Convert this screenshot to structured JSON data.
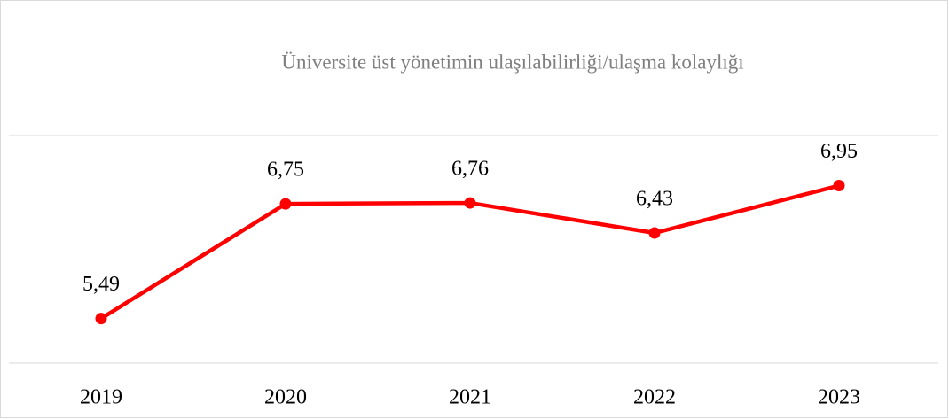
{
  "chart_data": {
    "type": "line",
    "title": "Üniversite üst yönetimin ulaşılabilirliği/ulaşma kolaylığı",
    "categories": [
      "2019",
      "2020",
      "2021",
      "2022",
      "2023"
    ],
    "series": [
      {
        "name": "Üniversite üst yönetimin ulaşılabilirliği/ulaşma kolaylığı",
        "color": "#ff0000",
        "values": [
          5.49,
          6.75,
          6.76,
          6.43,
          6.95
        ],
        "value_labels": [
          "5,49",
          "6,75",
          "6,76",
          "6,43",
          "6,95"
        ]
      }
    ],
    "ylim": [
      5,
      7.5
    ],
    "yticks": [
      5,
      7.5
    ],
    "grid": true
  }
}
